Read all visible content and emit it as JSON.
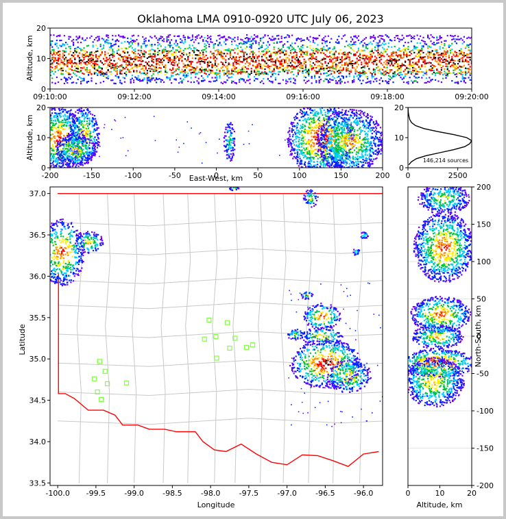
{
  "chart_data": [
    {
      "panel": "time-altitude",
      "type": "heatmap",
      "title": "Oklahoma LMA 0910-0920 UTC July 06, 2023",
      "ylabel": "Altitude, km",
      "xlabel": "",
      "xticks": [
        "09:10:00",
        "09:12:00",
        "09:14:00",
        "09:16:00",
        "09:18:00",
        "09:20:00"
      ],
      "xlim": [
        0,
        10
      ],
      "yticks": [
        0,
        10,
        20
      ],
      "ylim": [
        0,
        20
      ],
      "bands": [
        {
          "y": [
            5,
            14
          ],
          "level": 3
        },
        {
          "y": [
            2,
            18
          ],
          "level": 1
        }
      ]
    },
    {
      "panel": "east-west-altitude",
      "type": "heatmap",
      "xlabel": "East-West, km",
      "ylabel": "Altitude, km",
      "xticks": [
        -200,
        -150,
        -100,
        -50,
        0,
        50,
        100,
        150,
        200
      ],
      "xlim": [
        -200,
        200
      ],
      "yticks": [
        0,
        10,
        20
      ],
      "ylim": [
        0,
        20
      ],
      "blobs": [
        {
          "x": -190,
          "y": 10,
          "rx": 22,
          "ry": 8,
          "peak": 4
        },
        {
          "x": -160,
          "y": 11,
          "rx": 14,
          "ry": 7,
          "peak": 3
        },
        {
          "x": -170,
          "y": 6,
          "rx": 18,
          "ry": 4,
          "peak": 3
        },
        {
          "x": 15,
          "y": 9,
          "rx": 5,
          "ry": 5,
          "peak": 1
        },
        {
          "x": 125,
          "y": 10,
          "rx": 30,
          "ry": 9,
          "peak": 5
        },
        {
          "x": 160,
          "y": 9,
          "rx": 30,
          "ry": 8,
          "peak": 3
        }
      ]
    },
    {
      "panel": "altitude-histogram",
      "type": "line",
      "xticks": [
        0,
        2500
      ],
      "xlim": [
        0,
        3200
      ],
      "yticks": [
        0,
        10,
        20
      ],
      "ylim": [
        0,
        20
      ],
      "annotation": "146,214 sources",
      "y": [
        1,
        2,
        3,
        4,
        5,
        6,
        7,
        8,
        9,
        10,
        11,
        12,
        13,
        14,
        15,
        16,
        17,
        18,
        19,
        20
      ],
      "x": [
        40,
        180,
        420,
        900,
        1600,
        2300,
        2850,
        3100,
        3200,
        2950,
        2300,
        1500,
        800,
        380,
        180,
        90,
        50,
        25,
        10,
        5
      ]
    },
    {
      "panel": "plan-view",
      "type": "scatter",
      "xlabel": "Longitude",
      "ylabel": "Latitude",
      "xticks": [
        -100.0,
        -99.5,
        -99.0,
        -98.5,
        -98.0,
        -97.5,
        -97.0,
        -96.5,
        -96.0
      ],
      "xlim": [
        -100.1,
        -95.75
      ],
      "yticks": [
        33.5,
        34.0,
        34.5,
        35.0,
        35.5,
        36.0,
        36.5,
        37.0
      ],
      "ylim": [
        33.47,
        37.08
      ],
      "stations": [
        {
          "lon": -99.45,
          "lat": 34.97
        },
        {
          "lon": -99.38,
          "lat": 34.85
        },
        {
          "lon": -99.52,
          "lat": 34.76
        },
        {
          "lon": -99.35,
          "lat": 34.7
        },
        {
          "lon": -99.48,
          "lat": 34.6
        },
        {
          "lon": -99.43,
          "lat": 34.51
        },
        {
          "lon": -99.1,
          "lat": 34.71
        },
        {
          "lon": -98.02,
          "lat": 35.47
        },
        {
          "lon": -97.78,
          "lat": 35.44
        },
        {
          "lon": -98.08,
          "lat": 35.24
        },
        {
          "lon": -97.93,
          "lat": 35.27
        },
        {
          "lon": -97.68,
          "lat": 35.25
        },
        {
          "lon": -97.45,
          "lat": 35.17
        },
        {
          "lon": -97.75,
          "lat": 35.13
        },
        {
          "lon": -97.53,
          "lat": 35.14
        },
        {
          "lon": -97.92,
          "lat": 35.01
        }
      ],
      "blobs": [
        {
          "lon": -99.95,
          "lat": 36.3,
          "rx": 0.22,
          "ry": 0.3,
          "peak": 4
        },
        {
          "lon": -99.6,
          "lat": 36.42,
          "rx": 0.14,
          "ry": 0.1,
          "peak": 3
        },
        {
          "lon": -96.55,
          "lat": 35.52,
          "rx": 0.18,
          "ry": 0.12,
          "peak": 4
        },
        {
          "lon": -96.55,
          "lat": 35.28,
          "rx": 0.2,
          "ry": 0.08,
          "peak": 3
        },
        {
          "lon": -96.5,
          "lat": 34.95,
          "rx": 0.35,
          "ry": 0.22,
          "peak": 5
        },
        {
          "lon": -96.2,
          "lat": 34.8,
          "rx": 0.22,
          "ry": 0.15,
          "peak": 3
        },
        {
          "lon": -96.75,
          "lat": 35.78,
          "rx": 0.06,
          "ry": 0.04,
          "peak": 2
        },
        {
          "lon": -96.9,
          "lat": 35.3,
          "rx": 0.08,
          "ry": 0.05,
          "peak": 2
        },
        {
          "lon": -96.7,
          "lat": 36.95,
          "rx": 0.07,
          "ry": 0.08,
          "peak": 2
        },
        {
          "lon": -97.7,
          "lat": 37.07,
          "rx": 0.05,
          "ry": 0.02,
          "peak": 2
        },
        {
          "lon": -96.0,
          "lat": 36.5,
          "rx": 0.04,
          "ry": 0.03,
          "peak": 1
        },
        {
          "lon": -96.1,
          "lat": 36.3,
          "rx": 0.04,
          "ry": 0.03,
          "peak": 1
        }
      ]
    },
    {
      "panel": "north-south-altitude",
      "type": "heatmap",
      "xlabel": "Altitude, km",
      "ylabel": "North-South, km",
      "xticks": [
        0,
        10,
        20
      ],
      "xlim": [
        0,
        20
      ],
      "yticks": [
        -200,
        -150,
        -100,
        -50,
        0,
        50,
        100,
        150,
        200
      ],
      "ylim": [
        -200,
        200
      ],
      "blobs": [
        {
          "x": 11,
          "y": 120,
          "rx": 7,
          "ry": 35,
          "peak": 4
        },
        {
          "x": 10,
          "y": 30,
          "rx": 7,
          "ry": 18,
          "peak": 4
        },
        {
          "x": 9,
          "y": 0,
          "rx": 6,
          "ry": 12,
          "peak": 3
        },
        {
          "x": 9,
          "y": -35,
          "rx": 9,
          "ry": 14,
          "peak": 5
        },
        {
          "x": 8,
          "y": -60,
          "rx": 7,
          "ry": 25,
          "peak": 3
        },
        {
          "x": 11,
          "y": 185,
          "rx": 6,
          "ry": 15,
          "peak": 2
        }
      ]
    }
  ],
  "colors": {
    "density_scale": [
      "#6a00ff",
      "#0022ff",
      "#00d0ff",
      "#00c040",
      "#ffee00",
      "#ff8800",
      "#ff0000",
      "#000000",
      "#ffffff"
    ],
    "state_border": "#ff0000",
    "county_lines": "#c8c8c8",
    "station": "#80ff40",
    "histogram_line": "#000000"
  }
}
